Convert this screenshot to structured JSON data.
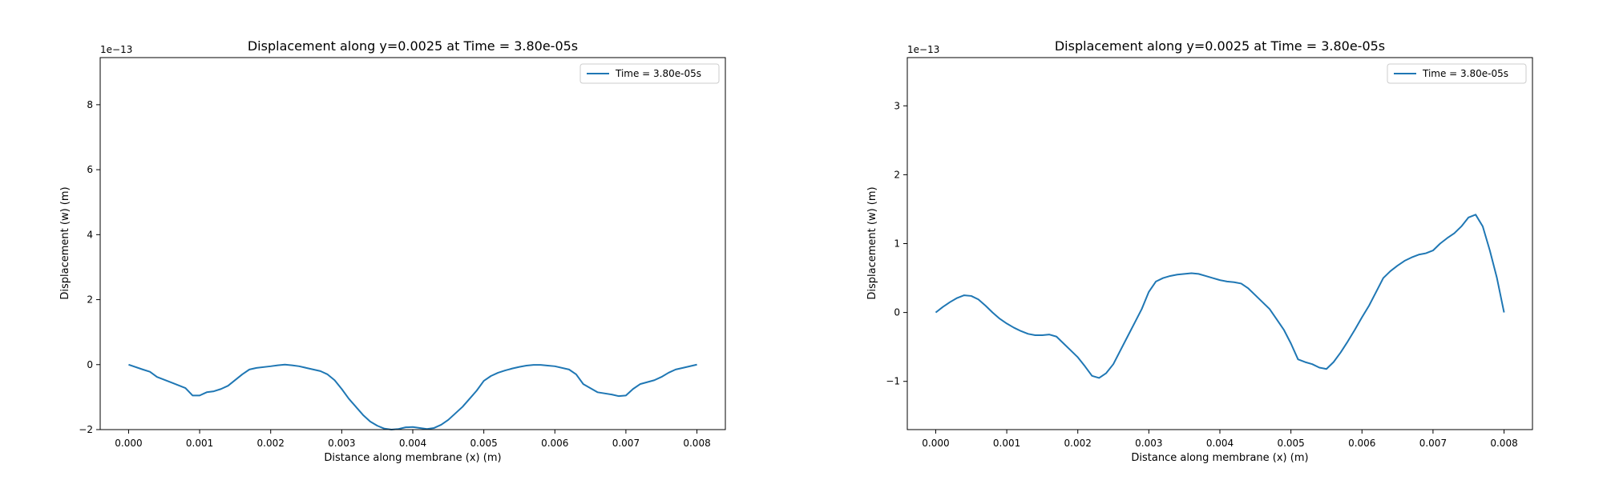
{
  "chart_data": [
    {
      "type": "line",
      "title": "Displacement along y=0.0025 at Time = 3.80e-05s",
      "xlabel": "Distance along membrane (x) (m)",
      "ylabel": "Displacement (w) (m)",
      "y_offset_text": "1e−13",
      "y_scale": 1e-13,
      "xlim": [
        -0.0004,
        0.0084
      ],
      "ylim": [
        -2.0,
        9.45
      ],
      "x_ticks": [
        0.0,
        0.001,
        0.002,
        0.003,
        0.004,
        0.005,
        0.006,
        0.007,
        0.008
      ],
      "x_tick_labels": [
        "0.000",
        "0.001",
        "0.002",
        "0.003",
        "0.004",
        "0.005",
        "0.006",
        "0.007",
        "0.008"
      ],
      "y_ticks": [
        -2,
        0,
        2,
        4,
        6,
        8
      ],
      "y_tick_labels": [
        "−2",
        "0",
        "2",
        "4",
        "6",
        "8"
      ],
      "grid": false,
      "legend": "top-right",
      "color": "#1f77b4",
      "series": [
        {
          "name": "Time = 3.80e-05s",
          "x": [
            0.0,
            0.0002,
            0.0003,
            0.0004,
            0.0006,
            0.0008,
            0.0009,
            0.001,
            0.0011,
            0.0012,
            0.0013,
            0.0014,
            0.0016,
            0.0017,
            0.0018,
            0.002,
            0.0021,
            0.0022,
            0.0023,
            0.0024,
            0.0025,
            0.0027,
            0.0028,
            0.0029,
            0.003,
            0.0031,
            0.0032,
            0.0033,
            0.0034,
            0.0035,
            0.0036,
            0.0037,
            0.0038,
            0.0039,
            0.004,
            0.0041,
            0.0042,
            0.0043,
            0.0044,
            0.0045,
            0.0046,
            0.0047,
            0.0048,
            0.0049,
            0.005,
            0.0051,
            0.0052,
            0.0053,
            0.0054,
            0.0055,
            0.0056,
            0.0057,
            0.0058,
            0.0059,
            0.006,
            0.0062,
            0.0063,
            0.0064,
            0.0066,
            0.0068,
            0.0069,
            0.007,
            0.0071,
            0.0072,
            0.0074,
            0.0075,
            0.0076,
            0.0077,
            0.0078,
            0.008
          ],
          "y": [
            0.0,
            -0.15,
            -0.22,
            -0.38,
            -0.55,
            -0.72,
            -0.95,
            -0.95,
            -0.85,
            -0.82,
            -0.75,
            -0.65,
            -0.3,
            -0.15,
            -0.1,
            -0.05,
            -0.02,
            0.0,
            -0.02,
            -0.05,
            -0.1,
            -0.2,
            -0.3,
            -0.48,
            -0.75,
            -1.05,
            -1.3,
            -1.55,
            -1.75,
            -1.88,
            -1.97,
            -2.0,
            -1.98,
            -1.93,
            -1.92,
            -1.95,
            -1.98,
            -1.95,
            -1.85,
            -1.7,
            -1.5,
            -1.3,
            -1.05,
            -0.8,
            -0.5,
            -0.35,
            -0.25,
            -0.18,
            -0.12,
            -0.07,
            -0.03,
            -0.01,
            -0.01,
            -0.03,
            -0.05,
            -0.15,
            -0.3,
            -0.6,
            -0.85,
            -0.92,
            -0.97,
            -0.95,
            -0.75,
            -0.6,
            -0.48,
            -0.38,
            -0.25,
            -0.15,
            -0.1,
            0.0
          ]
        }
      ]
    },
    {
      "type": "line",
      "title": "Displacement along y=0.0025 at Time = 3.80e-05s",
      "xlabel": "Distance along membrane (x) (m)",
      "ylabel": "Displacement (w) (m)",
      "y_offset_text": "1e−13",
      "y_scale": 1e-13,
      "xlim": [
        -0.0004,
        0.0084
      ],
      "ylim": [
        -1.7,
        3.7
      ],
      "x_ticks": [
        0.0,
        0.001,
        0.002,
        0.003,
        0.004,
        0.005,
        0.006,
        0.007,
        0.008
      ],
      "x_tick_labels": [
        "0.000",
        "0.001",
        "0.002",
        "0.003",
        "0.004",
        "0.005",
        "0.006",
        "0.007",
        "0.008"
      ],
      "y_ticks": [
        -1,
        0,
        1,
        2,
        3
      ],
      "y_tick_labels": [
        "−1",
        "0",
        "1",
        "2",
        "3"
      ],
      "grid": false,
      "legend": "top-right",
      "color": "#1f77b4",
      "series": [
        {
          "name": "Time = 3.80e-05s",
          "x": [
            0.0,
            0.0001,
            0.0002,
            0.0003,
            0.0004,
            0.0005,
            0.0006,
            0.0007,
            0.0008,
            0.0009,
            0.001,
            0.0011,
            0.0012,
            0.0013,
            0.0014,
            0.0015,
            0.0016,
            0.0017,
            0.0018,
            0.0019,
            0.002,
            0.0021,
            0.0022,
            0.0023,
            0.0024,
            0.0025,
            0.0026,
            0.0027,
            0.0028,
            0.0029,
            0.003,
            0.0031,
            0.0032,
            0.0033,
            0.0034,
            0.0035,
            0.0036,
            0.0037,
            0.0038,
            0.0039,
            0.004,
            0.0041,
            0.0042,
            0.0043,
            0.0044,
            0.0045,
            0.0046,
            0.0047,
            0.0048,
            0.0049,
            0.005,
            0.0051,
            0.0052,
            0.0053,
            0.0054,
            0.0055,
            0.0056,
            0.0057,
            0.0058,
            0.0059,
            0.006,
            0.0061,
            0.0062,
            0.0063,
            0.0064,
            0.0065,
            0.0066,
            0.0067,
            0.0068,
            0.0069,
            0.007,
            0.0071,
            0.0072,
            0.0073,
            0.0074,
            0.0075,
            0.0076,
            0.0077,
            0.0078,
            0.0079,
            0.008
          ],
          "y": [
            0.0,
            0.08,
            0.15,
            0.21,
            0.25,
            0.24,
            0.19,
            0.1,
            0.0,
            -0.09,
            -0.16,
            -0.22,
            -0.27,
            -0.31,
            -0.33,
            -0.33,
            -0.32,
            -0.35,
            -0.45,
            -0.55,
            -0.65,
            -0.78,
            -0.92,
            -0.95,
            -0.88,
            -0.75,
            -0.55,
            -0.35,
            -0.15,
            0.05,
            0.3,
            0.45,
            0.5,
            0.53,
            0.55,
            0.56,
            0.57,
            0.56,
            0.53,
            0.5,
            0.47,
            0.45,
            0.44,
            0.42,
            0.35,
            0.25,
            0.15,
            0.05,
            -0.1,
            -0.25,
            -0.45,
            -0.68,
            -0.72,
            -0.75,
            -0.8,
            -0.82,
            -0.72,
            -0.58,
            -0.42,
            -0.25,
            -0.07,
            0.1,
            0.3,
            0.5,
            0.6,
            0.68,
            0.75,
            0.8,
            0.84,
            0.86,
            0.9,
            1.0,
            1.08,
            1.15,
            1.25,
            1.38,
            1.42,
            1.25,
            0.9,
            0.5,
            0.0
          ]
        }
      ]
    }
  ]
}
